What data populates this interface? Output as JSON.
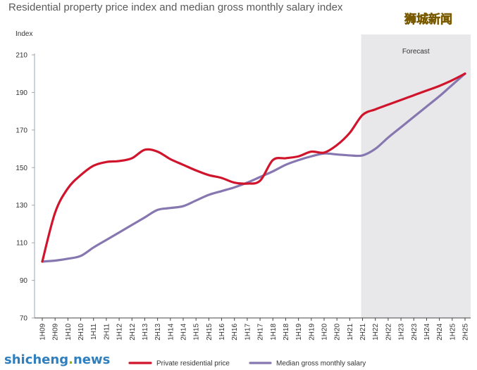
{
  "chart_data": {
    "type": "line",
    "title": "Residential property price index and median gross monthly salary index",
    "ylabel": "Index",
    "xlabel": "",
    "ylim": [
      70,
      210
    ],
    "yticks": [
      70,
      90,
      110,
      130,
      150,
      170,
      190,
      210
    ],
    "grid": false,
    "categories": [
      "1H09",
      "2H09",
      "1H10",
      "2H10",
      "1H11",
      "2H11",
      "1H12",
      "2H12",
      "1H13",
      "2H13",
      "1H14",
      "2H14",
      "1H15",
      "2H15",
      "1H16",
      "2H16",
      "1H17",
      "2H17",
      "1H18",
      "2H18",
      "1H19",
      "2H19",
      "1H20",
      "2H20",
      "1H21",
      "2H21",
      "1H22",
      "2H22",
      "1H23",
      "2H23",
      "1H24",
      "2H24",
      "1H25",
      "2H25"
    ],
    "forecast": {
      "label": "Forecast",
      "start": "2H21",
      "end": "2H25",
      "color": "#e8e8ea"
    },
    "series": [
      {
        "name": "Private residential price",
        "color": "#d0142c",
        "values": [
          100,
          126,
          139,
          146,
          151,
          153,
          153.5,
          155,
          159.5,
          158.5,
          154.5,
          151.5,
          148.5,
          146,
          144.5,
          142,
          141.5,
          143,
          154,
          155,
          156,
          158.5,
          158,
          162,
          168.5,
          178,
          181,
          183.5,
          186,
          188.5,
          191,
          193.5,
          196.5,
          200
        ]
      },
      {
        "name": "Median gross monthly salary",
        "color": "#8677b0",
        "values": [
          100,
          100.5,
          101.5,
          103,
          107.5,
          111.5,
          115.5,
          119.5,
          123.5,
          127.5,
          128.5,
          129.5,
          132.5,
          135.5,
          137.5,
          139.5,
          142,
          145,
          148,
          151.5,
          154,
          156,
          157.5,
          157,
          156.5,
          156.5,
          160,
          166,
          171.5,
          177,
          182.5,
          188,
          194,
          200
        ]
      }
    ]
  },
  "watermark": {
    "cn_text": "狮城新闻",
    "en_text_main": "shicheng",
    "en_text_dot": ".",
    "en_text_end": "news",
    "cn_color": "#f2c200",
    "en_color": "#2f7fbf",
    "dot_color": "#8ab800"
  }
}
